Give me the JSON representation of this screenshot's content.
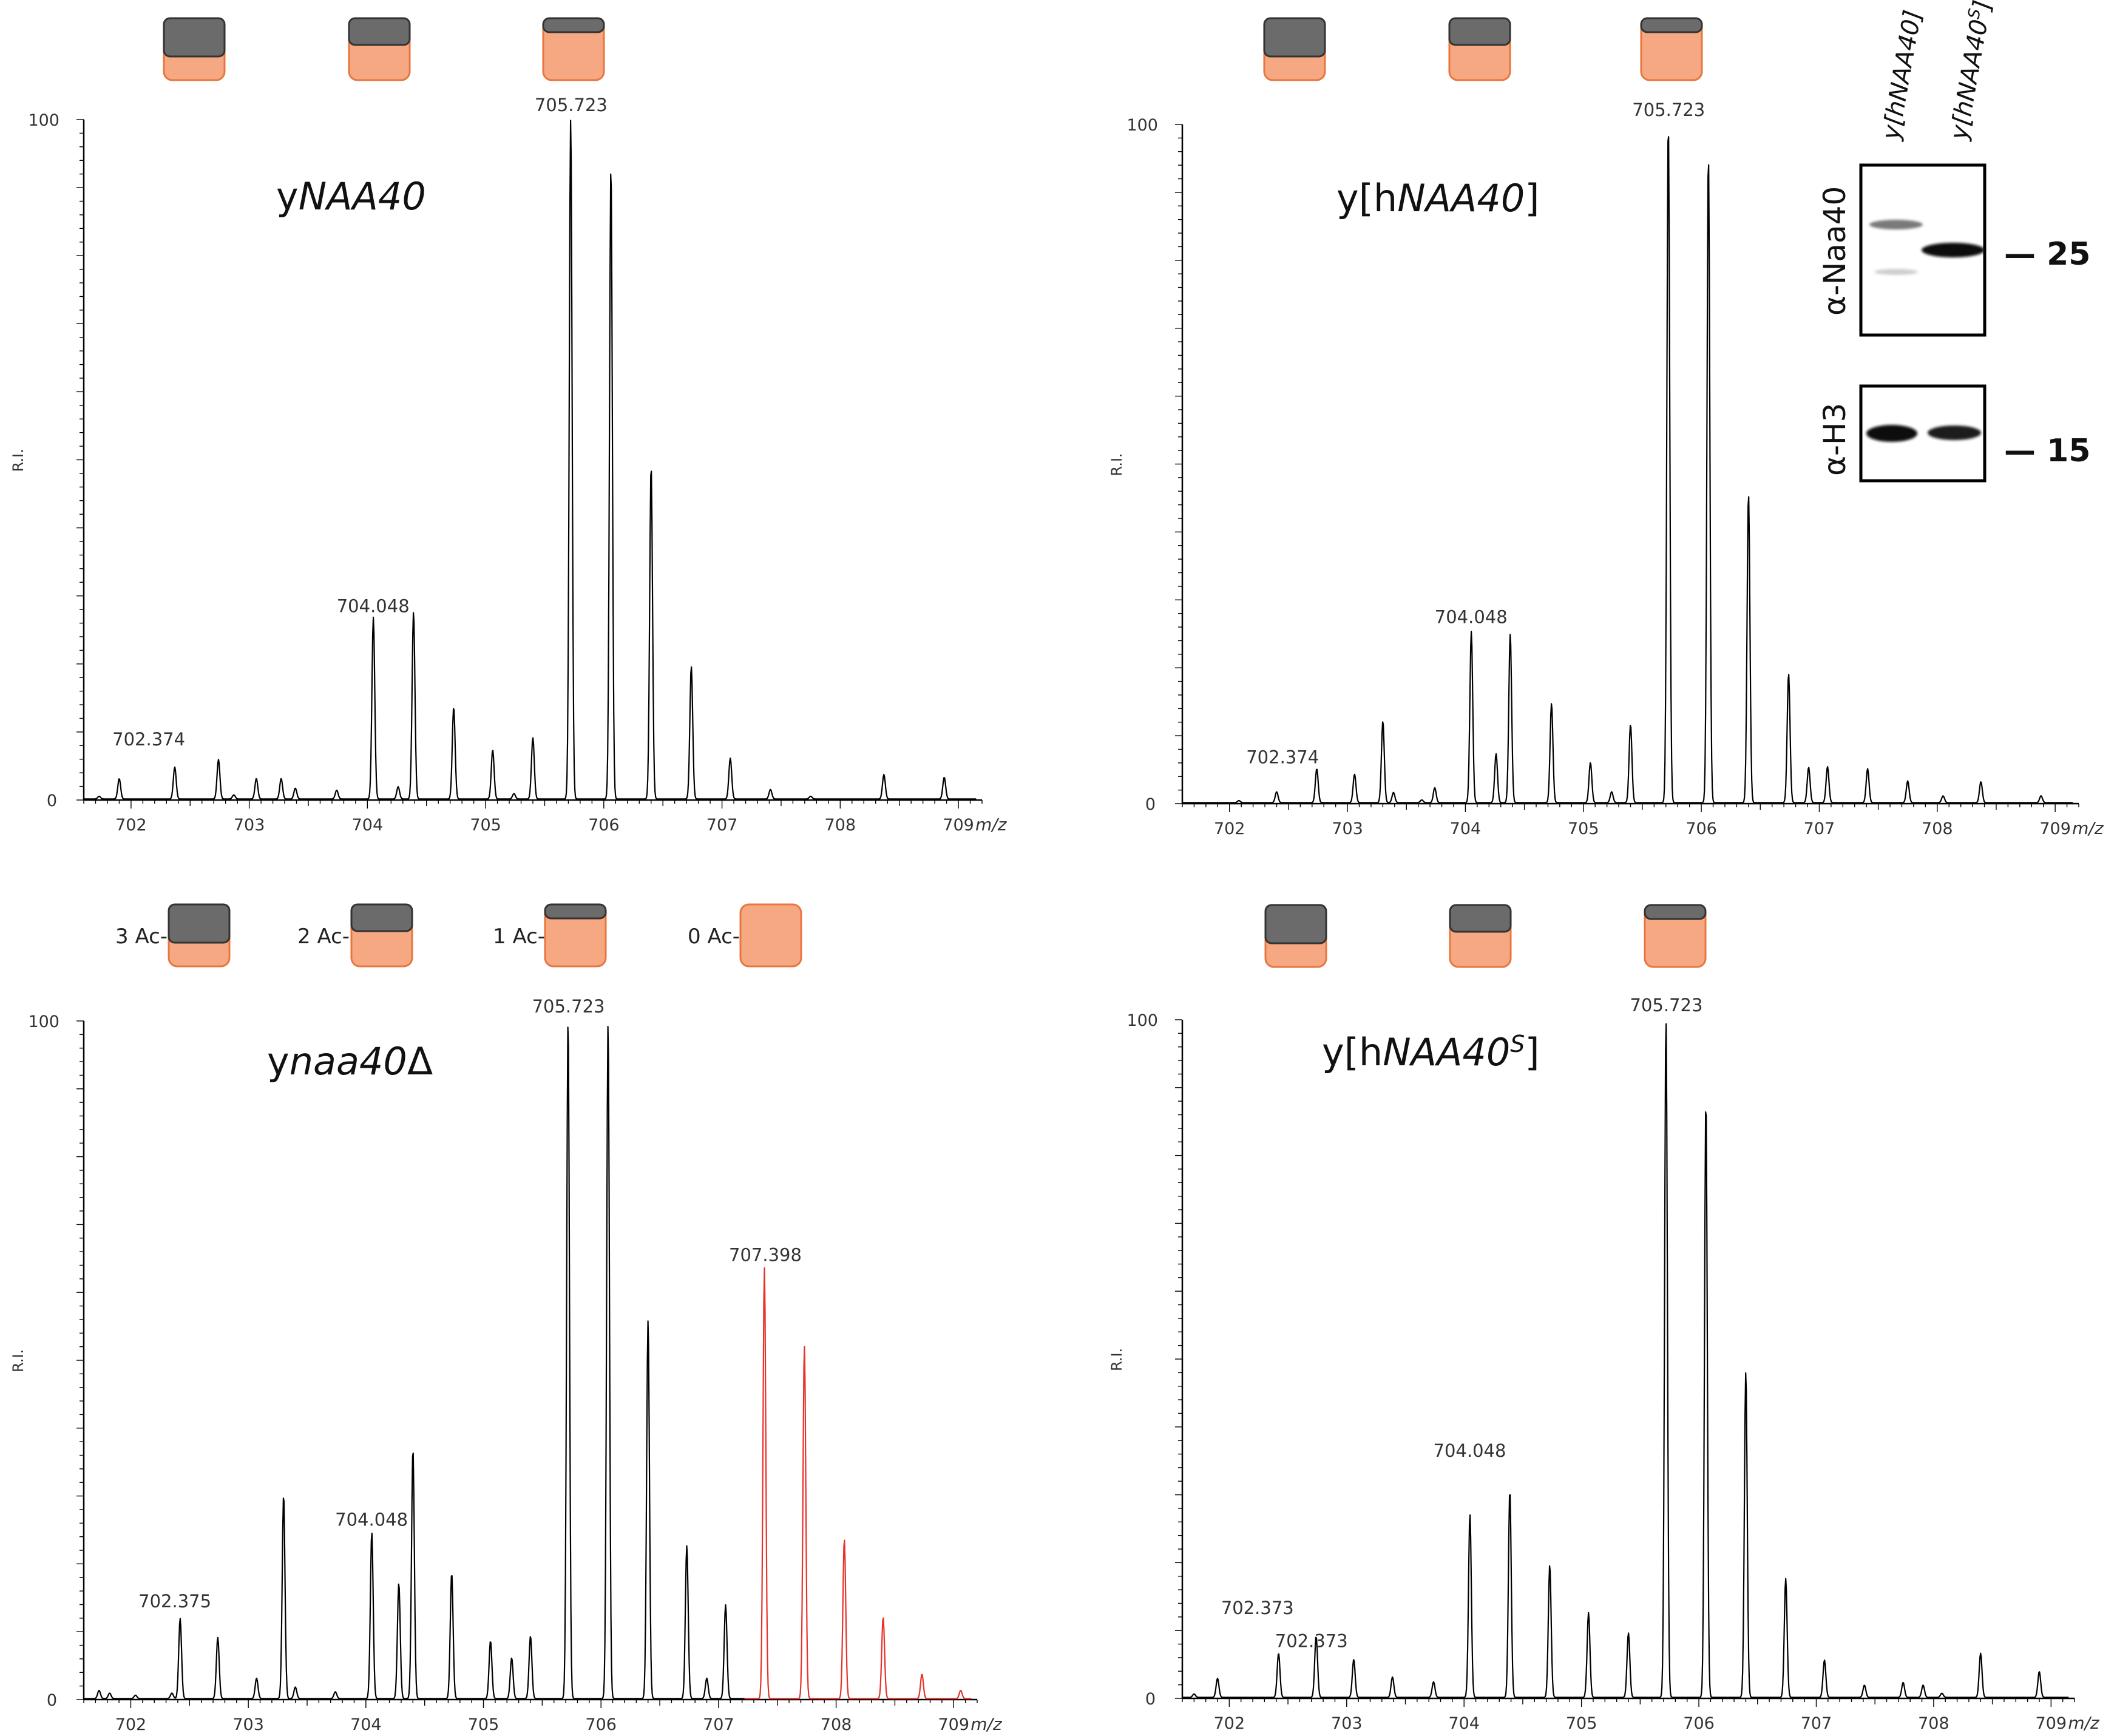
{
  "legend": {
    "labels": [
      "3 Ac-",
      "2 Ac-",
      "1 Ac-",
      "0 Ac-"
    ],
    "colors": {
      "gray": "#6b6b6b",
      "orange": "#f5a882",
      "orange_border": "#e8763f"
    }
  },
  "western_blot": {
    "lanes": [
      "y[hNAA40]",
      "y[hNAA40S]"
    ],
    "rows": [
      {
        "antibody": "α-Naa40",
        "marker": "— 25"
      },
      {
        "antibody": "α-H3",
        "marker": "— 15"
      }
    ]
  },
  "chart_data": [
    {
      "type": "line",
      "title_prefix": "y",
      "title_main": "NAA40",
      "title_suffix": "",
      "ylabel": "R.I.",
      "xlabel": "m/z",
      "y_ticks_labels": [
        "0",
        "100"
      ],
      "xlim": [
        701.6,
        709.2
      ],
      "ylim": [
        0,
        100
      ],
      "x_ticks": [
        "702",
        "703",
        "704",
        "705",
        "706",
        "707",
        "708",
        "709"
      ],
      "ac_states_shown": 3,
      "peak_labels": [
        {
          "x": 702.374,
          "y": 5,
          "text": "702.374"
        },
        {
          "x": 704.048,
          "y": 26,
          "text": "704.048"
        },
        {
          "x": 705.723,
          "y": 100,
          "text": "705.723"
        }
      ],
      "series": [
        {
          "color": "#000000",
          "peaks": [
            [
              701.73,
              0.4
            ],
            [
              701.9,
              3
            ],
            [
              702.37,
              4.7
            ],
            [
              702.74,
              5.8
            ],
            [
              702.87,
              0.6
            ],
            [
              703.06,
              3
            ],
            [
              703.27,
              3
            ],
            [
              703.39,
              1.6
            ],
            [
              703.74,
              1.3
            ],
            [
              704.05,
              26.7
            ],
            [
              704.26,
              1.8
            ],
            [
              704.39,
              27.5
            ],
            [
              704.73,
              13.5
            ],
            [
              705.06,
              7.2
            ],
            [
              705.24,
              0.8
            ],
            [
              705.4,
              9
            ],
            [
              705.72,
              100
            ],
            [
              706.06,
              93
            ],
            [
              706.4,
              49
            ],
            [
              706.74,
              19.5
            ],
            [
              707.07,
              6
            ],
            [
              707.41,
              1.4
            ],
            [
              707.75,
              0.4
            ],
            [
              708.37,
              3.6
            ],
            [
              708.88,
              3.2
            ]
          ]
        }
      ]
    },
    {
      "type": "line",
      "title_prefix": "y[h",
      "title_main": "NAA40",
      "title_suffix": "]",
      "ylabel": "R.I.",
      "xlabel": "m/z",
      "y_ticks_labels": [
        "0",
        "100"
      ],
      "xlim": [
        701.6,
        709.2
      ],
      "ylim": [
        0,
        100
      ],
      "x_ticks": [
        "702",
        "703",
        "704",
        "705",
        "706",
        "707",
        "708",
        "709"
      ],
      "ac_states_shown": 3,
      "peak_labels": [
        {
          "x": 702.374,
          "y": 1.5,
          "text": "702.374"
        },
        {
          "x": 704.048,
          "y": 25,
          "text": "704.048"
        },
        {
          "x": 705.723,
          "y": 100,
          "text": "705.723"
        }
      ],
      "series": [
        {
          "color": "#000000",
          "peaks": [
            [
              702.08,
              0.3
            ],
            [
              702.4,
              1.6
            ],
            [
              702.74,
              5
            ],
            [
              703.06,
              4.2
            ],
            [
              703.3,
              12
            ],
            [
              703.39,
              1.5
            ],
            [
              703.63,
              0.4
            ],
            [
              703.74,
              2.2
            ],
            [
              704.05,
              25.2
            ],
            [
              704.26,
              7.2
            ],
            [
              704.38,
              24.8
            ],
            [
              704.73,
              14.6
            ],
            [
              705.06,
              5.9
            ],
            [
              705.24,
              1.6
            ],
            [
              705.4,
              11.5
            ],
            [
              705.72,
              100
            ],
            [
              706.06,
              95.3
            ],
            [
              706.4,
              45.5
            ],
            [
              706.74,
              19
            ],
            [
              706.91,
              5.2
            ],
            [
              707.07,
              5.3
            ],
            [
              707.41,
              5
            ],
            [
              707.75,
              3.2
            ],
            [
              708.05,
              1
            ],
            [
              708.37,
              3.1
            ],
            [
              708.88,
              1
            ]
          ]
        }
      ]
    },
    {
      "type": "line",
      "title_prefix": "y",
      "title_main": "naa40",
      "title_suffix": "Δ",
      "ylabel": "R.I.",
      "xlabel": "m/z",
      "y_ticks_labels": [
        "0",
        "100"
      ],
      "xlim": [
        701.6,
        709.2
      ],
      "ylim": [
        0,
        100
      ],
      "x_ticks": [
        "702",
        "703",
        "704",
        "705",
        "706",
        "707",
        "708",
        "709"
      ],
      "ac_states_shown": 4,
      "peak_labels": [
        {
          "x": 702.375,
          "y": 12,
          "text": "702.375"
        },
        {
          "x": 704.048,
          "y": 24,
          "text": "704.048"
        },
        {
          "x": 705.723,
          "y": 100,
          "text": "705.723"
        },
        {
          "x": 707.398,
          "y": 63,
          "text": "707.398",
          "color": "#e8312a"
        }
      ],
      "series": [
        {
          "color": "#000000",
          "peaks": [
            [
              701.73,
              1.2
            ],
            [
              701.82,
              0.8
            ],
            [
              702.04,
              0.5
            ],
            [
              702.35,
              0.8
            ],
            [
              702.42,
              11.8
            ],
            [
              702.74,
              9
            ],
            [
              703.07,
              3
            ],
            [
              703.3,
              30
            ],
            [
              703.4,
              1.7
            ],
            [
              703.74,
              1
            ],
            [
              704.05,
              24.5
            ],
            [
              704.28,
              17
            ],
            [
              704.4,
              36.8
            ],
            [
              704.73,
              18.5
            ],
            [
              705.06,
              8.5
            ],
            [
              705.24,
              6
            ],
            [
              705.4,
              9.2
            ],
            [
              705.72,
              100
            ],
            [
              706.06,
              99.5
            ],
            [
              706.4,
              55.7
            ],
            [
              706.73,
              22.5
            ],
            [
              706.9,
              3
            ],
            [
              707.06,
              13.8
            ]
          ]
        },
        {
          "color": "#e8312a",
          "peaks": [
            [
              707.39,
              63.5
            ],
            [
              707.73,
              52
            ],
            [
              708.07,
              23.5
            ],
            [
              708.4,
              12
            ],
            [
              708.73,
              3.6
            ],
            [
              709.06,
              1.2
            ]
          ]
        }
      ]
    },
    {
      "type": "line",
      "title_prefix": "y[h",
      "title_main": "NAA40",
      "title_superscript": "S",
      "title_suffix": "]",
      "ylabel": "R.I.",
      "xlabel": "m/z",
      "y_ticks_labels": [
        "0",
        "100"
      ],
      "xlim": [
        701.6,
        709.2
      ],
      "ylim": [
        0,
        100
      ],
      "x_ticks": [
        "702",
        "703",
        "704",
        "705",
        "706",
        "707",
        "708",
        "709"
      ],
      "ac_states_shown": 3,
      "peak_labels": [
        {
          "x": 702.373,
          "y": 11,
          "text": "702.373"
        },
        {
          "x": 702.373,
          "y": 6,
          "text": "702.373"
        },
        {
          "x": 704.048,
          "y": 34,
          "text": "704.048"
        },
        {
          "x": 705.723,
          "y": 100,
          "text": "705.723"
        }
      ],
      "series": [
        {
          "color": "#000000",
          "peaks": [
            [
              701.7,
              0.5
            ],
            [
              701.9,
              2.8
            ],
            [
              702.42,
              6.5
            ],
            [
              702.74,
              9
            ],
            [
              703.06,
              5.6
            ],
            [
              703.39,
              3
            ],
            [
              703.74,
              2.3
            ],
            [
              704.05,
              27
            ],
            [
              704.39,
              30.5
            ],
            [
              704.73,
              19.5
            ],
            [
              705.06,
              12.5
            ],
            [
              705.4,
              9.5
            ],
            [
              705.72,
              100
            ],
            [
              706.06,
              88
            ],
            [
              706.4,
              48
            ],
            [
              706.74,
              17.5
            ],
            [
              707.07,
              5.5
            ],
            [
              707.41,
              1.8
            ],
            [
              707.74,
              2.2
            ],
            [
              707.91,
              1.8
            ],
            [
              708.07,
              0.6
            ],
            [
              708.4,
              6.5
            ],
            [
              708.9,
              3.8
            ]
          ]
        }
      ]
    }
  ]
}
